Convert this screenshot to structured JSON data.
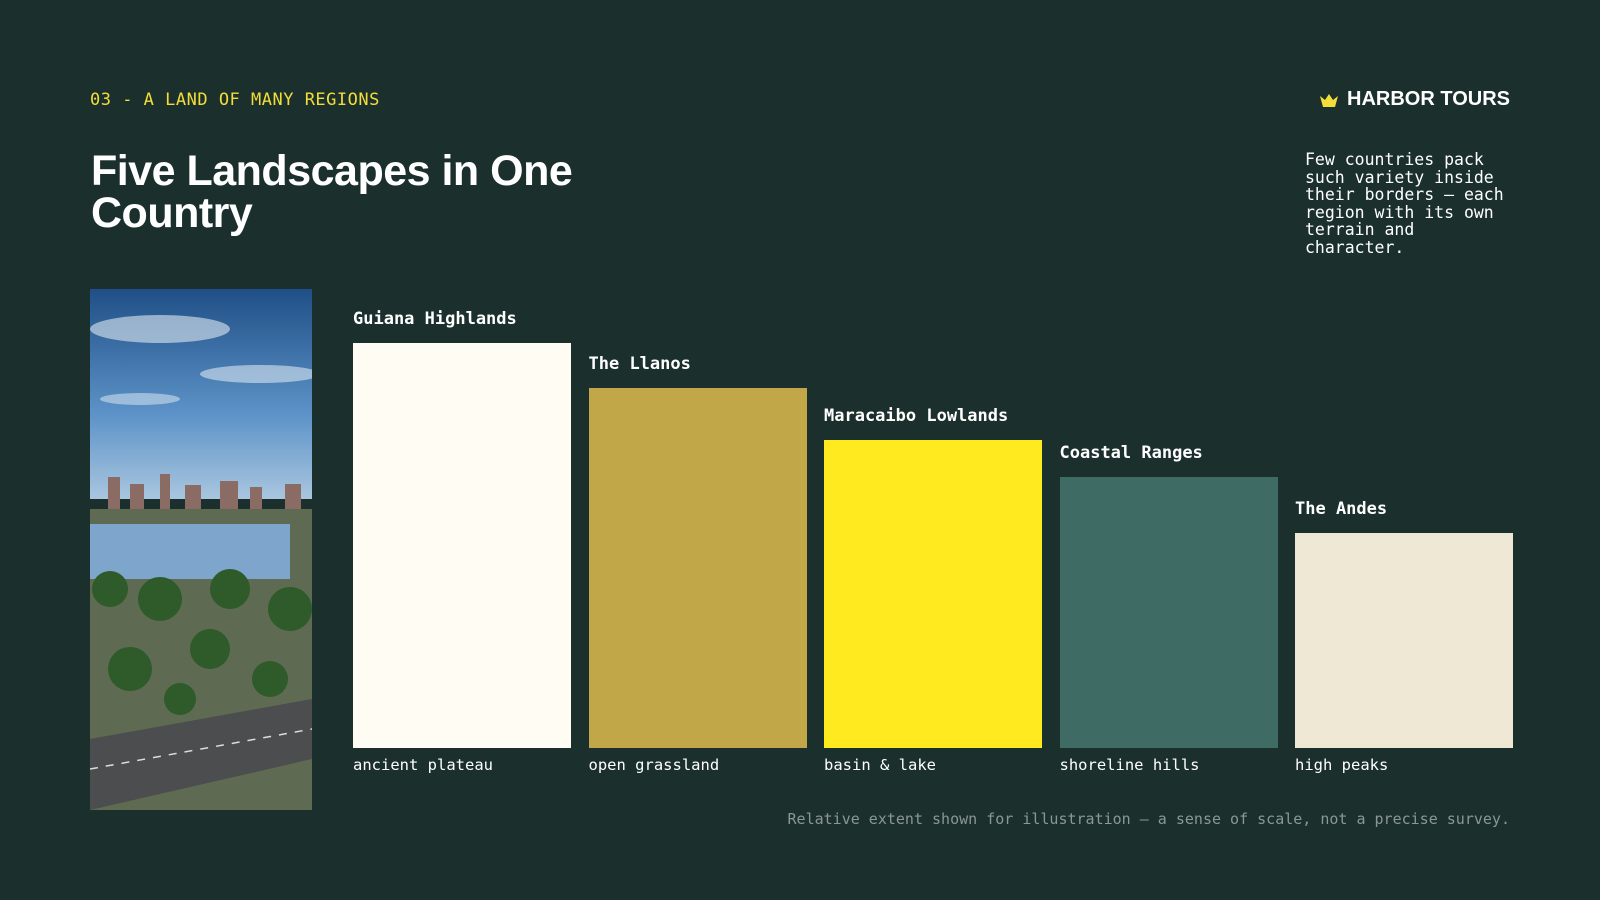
{
  "eyebrow": "03 - A LAND OF MANY REGIONS",
  "title": "Five Landscapes in One Country",
  "brand": "HARBOR TOURS",
  "description": "Few countries pack such variety inside their borders — each region with its own terrain and character.",
  "regions": [
    {
      "name": "Guiana Highlands",
      "note": "ancient plateau",
      "extent": 100,
      "color": "#fffcf3"
    },
    {
      "name": "The Llanos",
      "note": "open grassland",
      "extent": 89,
      "color": "#c1a748"
    },
    {
      "name": "Maracaibo Lowlands",
      "note": "basin & lake",
      "extent": 76,
      "color": "#ffea1f"
    },
    {
      "name": "Coastal Ranges",
      "note": "shoreline hills",
      "extent": 67,
      "color": "#3e6c65"
    },
    {
      "name": "The Andes",
      "note": "high peaks",
      "extent": 53,
      "color": "#efe8d5"
    }
  ],
  "footnote": "Relative extent shown for illustration — a sense of scale, not a precise survey."
}
